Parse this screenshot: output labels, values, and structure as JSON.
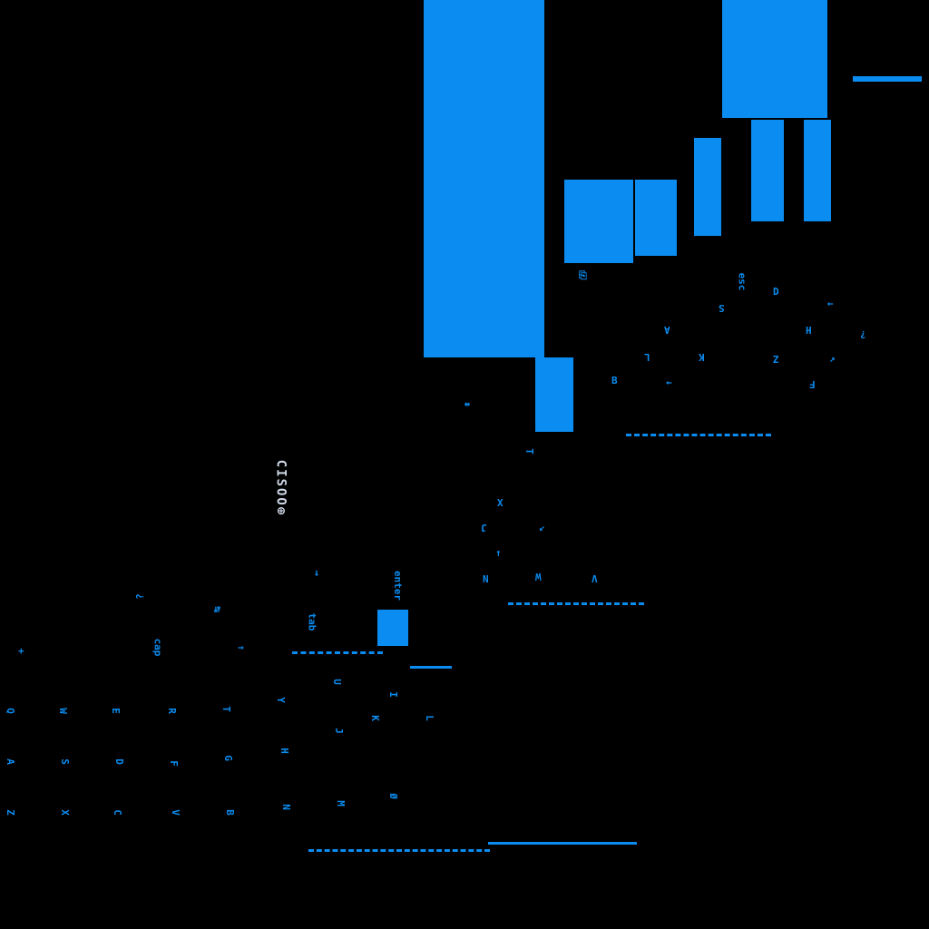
{
  "status_overlay": {
    "text": "CISOO⊕"
  },
  "key_labels": [
    "⇞",
    "⎘",
    "esc",
    "D",
    "→",
    "S",
    "H",
    "?",
    "K",
    "A",
    "L",
    "Z",
    "↗",
    "←",
    "F",
    "B",
    "X",
    "J",
    "↙",
    "↑",
    "W",
    "N",
    "V",
    "T",
    "⇝",
    "¿",
    "enter",
    "↹",
    "cap",
    "→",
    "tab",
    "Q",
    "W",
    "E",
    "R",
    "T",
    "Y",
    "U",
    "I",
    "A",
    "S",
    "D",
    "F",
    "G",
    "H",
    "J",
    "K",
    "L",
    "Z",
    "X",
    "C",
    "V",
    "B",
    "N",
    "M",
    "Ø",
    "+"
  ],
  "colors": {
    "accent": "#0a8cf0",
    "background": "#000000",
    "overlay_text": "#cfd8e6"
  }
}
